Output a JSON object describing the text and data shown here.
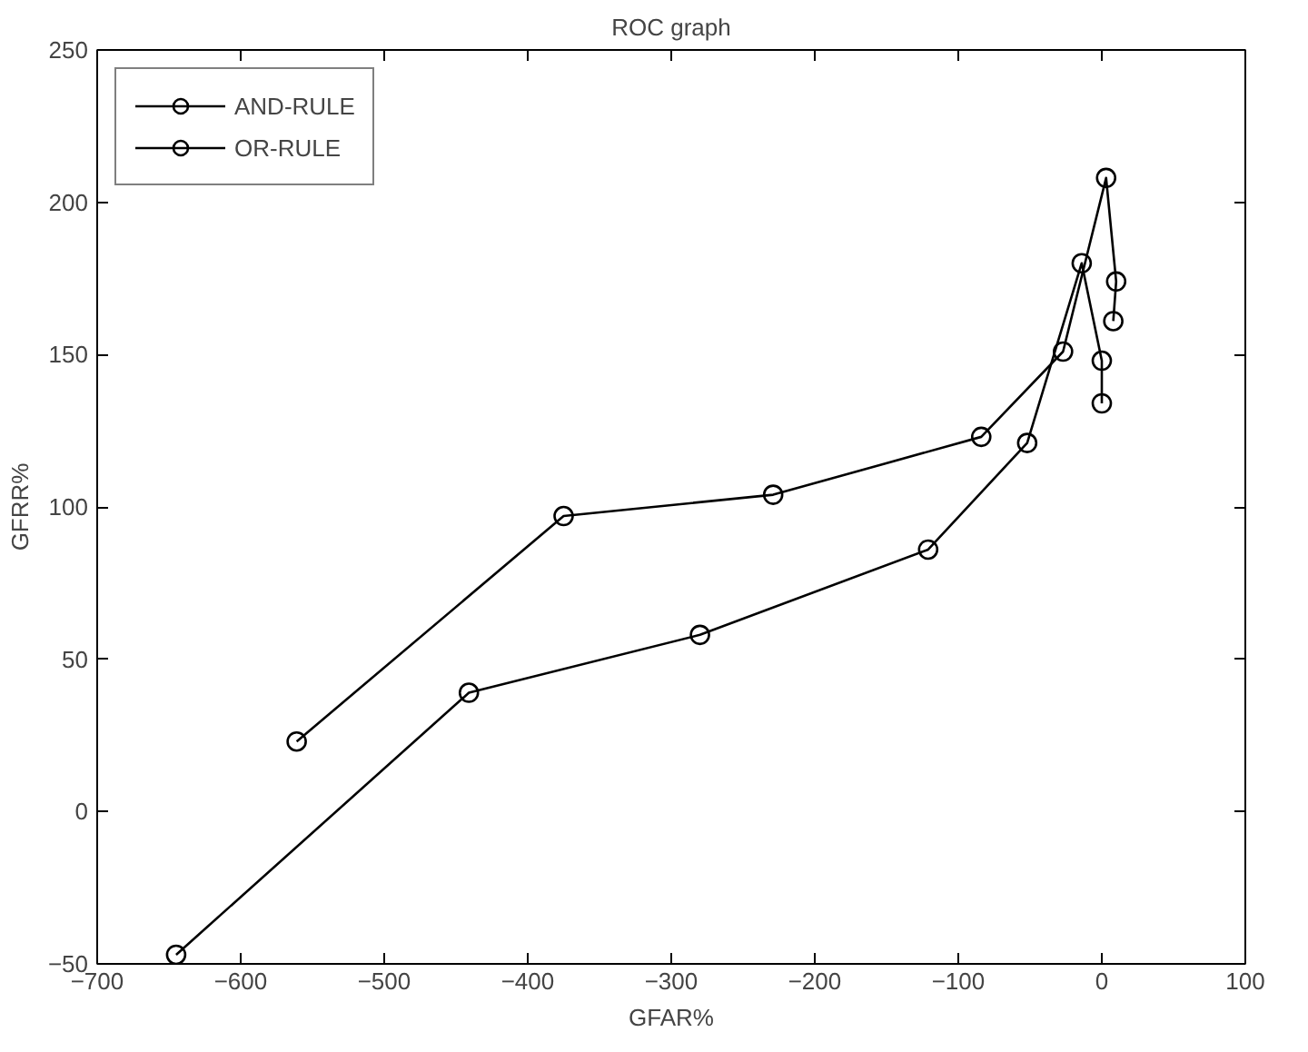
{
  "chart_data": {
    "type": "line",
    "title": "ROC graph",
    "xlabel": "GFAR%",
    "ylabel": "GFRR%",
    "xlim": [
      -700,
      100
    ],
    "xticks": [
      -700,
      -600,
      -500,
      -400,
      -300,
      -200,
      -100,
      0,
      100
    ],
    "ylim": [
      -50,
      250
    ],
    "yticks": [
      -50,
      0,
      50,
      100,
      150,
      200,
      250
    ],
    "grid": false,
    "legend": "top left",
    "marker": "circle",
    "line_style": "solid",
    "series": [
      {
        "name": "AND-RULE",
        "color": "#000000",
        "x": [
          -645,
          -441,
          -280,
          -121,
          -52,
          -14,
          0,
          0
        ],
        "values": [
          -47,
          39,
          58,
          86,
          121,
          180,
          148,
          134
        ]
      },
      {
        "name": "OR-RULE",
        "color": "#000000",
        "x": [
          -561,
          -375,
          -229,
          -84,
          -27,
          3,
          10,
          8
        ],
        "values": [
          23,
          97,
          104,
          123,
          151,
          208,
          174,
          161
        ]
      }
    ]
  }
}
